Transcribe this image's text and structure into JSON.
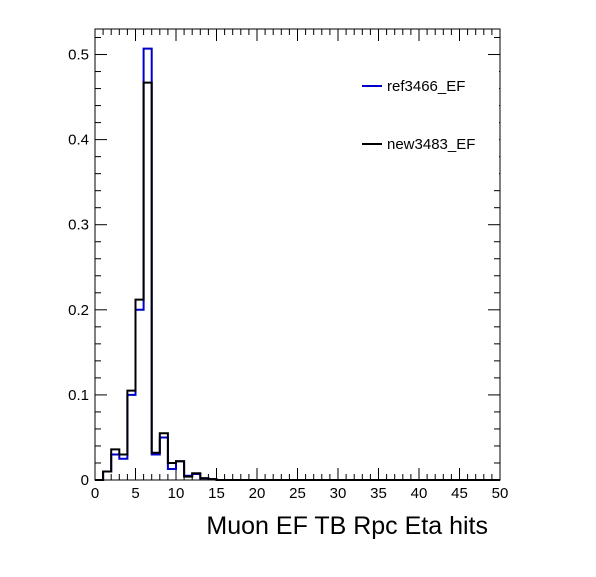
{
  "chart_data": {
    "type": "line",
    "title": "",
    "xlabel": "Muon EF TB Rpc Eta hits",
    "ylabel": "",
    "xlim": [
      0,
      50
    ],
    "ylim": [
      0,
      0.53
    ],
    "x_ticks": [
      "0",
      "5",
      "10",
      "15",
      "20",
      "25",
      "30",
      "35",
      "40",
      "45",
      "50"
    ],
    "y_ticks": [
      "0",
      "0.1",
      "0.2",
      "0.3",
      "0.4",
      "0.5"
    ],
    "x_tick_values": [
      0,
      5,
      10,
      15,
      20,
      25,
      30,
      35,
      40,
      45,
      50
    ],
    "y_tick_values": [
      0,
      0.1,
      0.2,
      0.3,
      0.4,
      0.5
    ],
    "bin_edges": [
      0,
      1,
      2,
      3,
      4,
      5,
      6,
      7,
      8,
      9,
      10,
      11,
      12,
      13,
      14,
      15,
      16,
      17,
      18,
      19,
      20,
      21,
      22,
      23,
      24,
      25,
      26,
      27,
      28,
      29,
      30,
      31,
      32,
      33,
      34,
      35,
      36,
      37,
      38,
      39,
      40,
      41,
      42,
      43,
      44,
      45,
      46,
      47,
      48,
      49,
      50
    ],
    "grid": false,
    "legend_position": "top-right",
    "series": [
      {
        "name": "ref3466_EF",
        "color": "#0000cc",
        "values": [
          0,
          0.01,
          0.03,
          0.025,
          0.1,
          0.2,
          0.507,
          0.03,
          0.05,
          0.013,
          0.022,
          0.005,
          0.007,
          0.002,
          0.001,
          0,
          0,
          0,
          0,
          0,
          0,
          0,
          0,
          0,
          0,
          0,
          0,
          0,
          0,
          0,
          0,
          0,
          0,
          0,
          0,
          0,
          0,
          0,
          0,
          0,
          0,
          0,
          0,
          0,
          0,
          0,
          0,
          0,
          0,
          0
        ]
      },
      {
        "name": "new3483_EF",
        "color": "#000000",
        "values": [
          0,
          0.01,
          0.036,
          0.03,
          0.105,
          0.212,
          0.467,
          0.032,
          0.055,
          0.02,
          0.022,
          0.004,
          0.008,
          0.002,
          0.001,
          0,
          0,
          0,
          0,
          0,
          0,
          0,
          0,
          0,
          0,
          0,
          0,
          0,
          0,
          0,
          0,
          0,
          0,
          0,
          0,
          0,
          0,
          0,
          0,
          0,
          0,
          0,
          0,
          0,
          0,
          0,
          0,
          0,
          0,
          0
        ]
      }
    ]
  }
}
